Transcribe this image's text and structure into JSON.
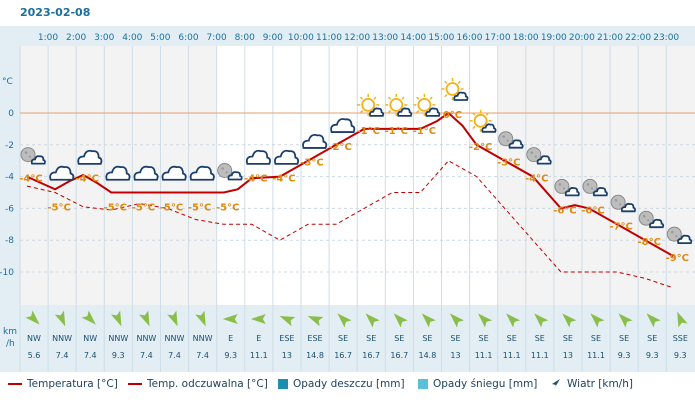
{
  "date": "2023-02-08",
  "y_axis_unit": "°C",
  "wind_unit": "km\n/h",
  "colors": {
    "temp_line": "#c00000",
    "feels_line": "#c00000",
    "rain": "#1b8fb0",
    "snow": "#5bbfd6",
    "wind_arrow": "#8bbd4a",
    "label": "#e08a10",
    "axis_text": "#1b6f9c"
  },
  "chart_data": {
    "type": "line",
    "x": [
      "1:00",
      "2:00",
      "3:00",
      "4:00",
      "5:00",
      "6:00",
      "7:00",
      "8:00",
      "9:00",
      "10:00",
      "11:00",
      "12:00",
      "13:00",
      "14:00",
      "15:00",
      "16:00",
      "17:00",
      "18:00",
      "19:00",
      "20:00",
      "21:00",
      "22:00",
      "23:00"
    ],
    "ylim": [
      -12,
      2
    ],
    "yticks": [
      0,
      -2,
      -4,
      -6,
      -8,
      -10
    ],
    "grid": true,
    "series": [
      {
        "name": "Temperatura [°C]",
        "style": "solid",
        "points": [
          [
            0.0,
            -4.0
          ],
          [
            0.5,
            -4.4
          ],
          [
            1.0,
            -4.8
          ],
          [
            1.5,
            -4.3
          ],
          [
            2.0,
            -3.9
          ],
          [
            2.5,
            -4.4
          ],
          [
            3.0,
            -5.0
          ],
          [
            3.5,
            -5.0
          ],
          [
            4.0,
            -5.0
          ],
          [
            5.0,
            -5.0
          ],
          [
            6.0,
            -5.0
          ],
          [
            7.0,
            -5.0
          ],
          [
            7.5,
            -4.8
          ],
          [
            8.0,
            -4.1
          ],
          [
            9.0,
            -4.0
          ],
          [
            10.0,
            -3.0
          ],
          [
            11.0,
            -2.0
          ],
          [
            12.0,
            -1.0
          ],
          [
            13.0,
            -1.0
          ],
          [
            14.0,
            -1.0
          ],
          [
            14.6,
            -0.5
          ],
          [
            15.0,
            0.0
          ],
          [
            15.5,
            -0.8
          ],
          [
            16.0,
            -2.0
          ],
          [
            17.0,
            -3.0
          ],
          [
            18.0,
            -4.0
          ],
          [
            19.0,
            -6.0
          ],
          [
            19.5,
            -5.8
          ],
          [
            20.0,
            -6.0
          ],
          [
            21.0,
            -7.0
          ],
          [
            22.0,
            -8.0
          ],
          [
            23.0,
            -9.0
          ]
        ]
      },
      {
        "name": "Temp. odczuwalna [°C]",
        "style": "dashed",
        "points": [
          [
            0.0,
            -4.6
          ],
          [
            1.0,
            -5.0
          ],
          [
            2.0,
            -5.9
          ],
          [
            3.0,
            -6.1
          ],
          [
            4.0,
            -5.7
          ],
          [
            5.0,
            -6.0
          ],
          [
            6.0,
            -6.7
          ],
          [
            7.0,
            -7.0
          ],
          [
            8.0,
            -7.0
          ],
          [
            9.0,
            -8.0
          ],
          [
            10.0,
            -7.0
          ],
          [
            11.0,
            -7.0
          ],
          [
            12.0,
            -6.0
          ],
          [
            13.0,
            -5.0
          ],
          [
            14.0,
            -5.0
          ],
          [
            15.0,
            -3.0
          ],
          [
            16.0,
            -4.0
          ],
          [
            17.0,
            -6.0
          ],
          [
            18.0,
            -8.0
          ],
          [
            19.0,
            -10.0
          ],
          [
            20.0,
            -10.0
          ],
          [
            21.0,
            -10.0
          ],
          [
            22.0,
            -10.4
          ],
          [
            23.0,
            -11.0
          ]
        ]
      }
    ],
    "hourly": [
      {
        "hour": "1:00",
        "temp_label": "-4°C",
        "temp": -4,
        "icon": "night-cloudy-icon",
        "wind_dir": "NW",
        "wind_speed": "5.6",
        "wind_angle": 135
      },
      {
        "hour": "2:00",
        "temp_label": "-5°C",
        "temp": -5,
        "icon": "cloud-icon",
        "wind_dir": "NNW",
        "wind_speed": "7.4",
        "wind_angle": 157
      },
      {
        "hour": "3:00",
        "temp_label": "-4°C",
        "temp": -4,
        "icon": "cloud-icon",
        "wind_dir": "NW",
        "wind_speed": "7.4",
        "wind_angle": 135
      },
      {
        "hour": "4:00",
        "temp_label": "-5°C",
        "temp": -5,
        "icon": "cloud-icon",
        "wind_dir": "NNW",
        "wind_speed": "9.3",
        "wind_angle": 157
      },
      {
        "hour": "5:00",
        "temp_label": "-5°C",
        "temp": -5,
        "icon": "cloud-icon",
        "wind_dir": "NNW",
        "wind_speed": "7.4",
        "wind_angle": 157
      },
      {
        "hour": "6:00",
        "temp_label": "-5°C",
        "temp": -5,
        "icon": "cloud-icon",
        "wind_dir": "NNW",
        "wind_speed": "7.4",
        "wind_angle": 157
      },
      {
        "hour": "7:00",
        "temp_label": "-5°C",
        "temp": -5,
        "icon": "cloud-icon",
        "wind_dir": "NNW",
        "wind_speed": "7.4",
        "wind_angle": 157
      },
      {
        "hour": "8:00",
        "temp_label": "-5°C",
        "temp": -5,
        "icon": "night-cloudy-icon",
        "wind_dir": "E",
        "wind_speed": "9.3",
        "wind_angle": 270
      },
      {
        "hour": "9:00",
        "temp_label": "-4°C",
        "temp": -4,
        "icon": "cloud-icon",
        "wind_dir": "E",
        "wind_speed": "11.1",
        "wind_angle": 270
      },
      {
        "hour": "10:00",
        "temp_label": "-4°C",
        "temp": -4,
        "icon": "cloud-icon",
        "wind_dir": "ESE",
        "wind_speed": "13",
        "wind_angle": 292
      },
      {
        "hour": "11:00",
        "temp_label": "-3°C",
        "temp": -3,
        "icon": "cloud-icon",
        "wind_dir": "ESE",
        "wind_speed": "14.8",
        "wind_angle": 292
      },
      {
        "hour": "12:00",
        "temp_label": "-2°C",
        "temp": -2,
        "icon": "cloud-icon",
        "wind_dir": "SE",
        "wind_speed": "16.7",
        "wind_angle": 315
      },
      {
        "hour": "13:00",
        "temp_label": "-1°C",
        "temp": -1,
        "icon": "sun-cloud-icon",
        "wind_dir": "SE",
        "wind_speed": "16.7",
        "wind_angle": 315
      },
      {
        "hour": "14:00",
        "temp_label": "-1°C",
        "temp": -1,
        "icon": "sun-cloud-icon",
        "wind_dir": "SE",
        "wind_speed": "16.7",
        "wind_angle": 315
      },
      {
        "hour": "15:00",
        "temp_label": "-1°C",
        "temp": -1,
        "icon": "sun-cloud-icon",
        "wind_dir": "SE",
        "wind_speed": "14.8",
        "wind_angle": 315
      },
      {
        "hour": "16:00",
        "temp_label": "0°C",
        "temp": 0,
        "icon": "sun-cloud-icon",
        "wind_dir": "SE",
        "wind_speed": "13",
        "wind_angle": 315
      },
      {
        "hour": "17:00",
        "temp_label": "-2°C",
        "temp": -2,
        "icon": "sun-cloud-icon",
        "wind_dir": "SE",
        "wind_speed": "11.1",
        "wind_angle": 315
      },
      {
        "hour": "18:00",
        "temp_label": "-3°C",
        "temp": -3,
        "icon": "night-cloudy-icon",
        "wind_dir": "SE",
        "wind_speed": "11.1",
        "wind_angle": 315
      },
      {
        "hour": "19:00",
        "temp_label": "-4°C",
        "temp": -4,
        "icon": "night-cloudy-icon",
        "wind_dir": "SE",
        "wind_speed": "11.1",
        "wind_angle": 315
      },
      {
        "hour": "20:00",
        "temp_label": "-6°C",
        "temp": -6,
        "icon": "night-cloudy-icon",
        "wind_dir": "SE",
        "wind_speed": "13",
        "wind_angle": 315
      },
      {
        "hour": "21:00",
        "temp_label": "-6°C",
        "temp": -6,
        "icon": "night-cloudy-icon",
        "wind_dir": "SE",
        "wind_speed": "11.1",
        "wind_angle": 315
      },
      {
        "hour": "22:00",
        "temp_label": "-7°C",
        "temp": -7,
        "icon": "night-cloudy-icon",
        "wind_dir": "SE",
        "wind_speed": "9.3",
        "wind_angle": 315
      },
      {
        "hour": "23:00",
        "temp_label": "-8°C",
        "temp": -8,
        "icon": "night-cloudy-icon",
        "wind_dir": "SE",
        "wind_speed": "9.3",
        "wind_angle": 315
      },
      {
        "hour": "",
        "temp_label": "-9°C",
        "temp": -9,
        "icon": "night-cloudy-icon",
        "wind_dir": "SSE",
        "wind_speed": "9.3",
        "wind_angle": 337
      }
    ]
  },
  "legend": {
    "temp": "Temperatura [°C]",
    "feels": "Temp. odczuwalna [°C]",
    "rain": "Opady deszczu [mm]",
    "snow": "Opady śniegu [mm]",
    "wind": "Wiatr [km/h]"
  }
}
